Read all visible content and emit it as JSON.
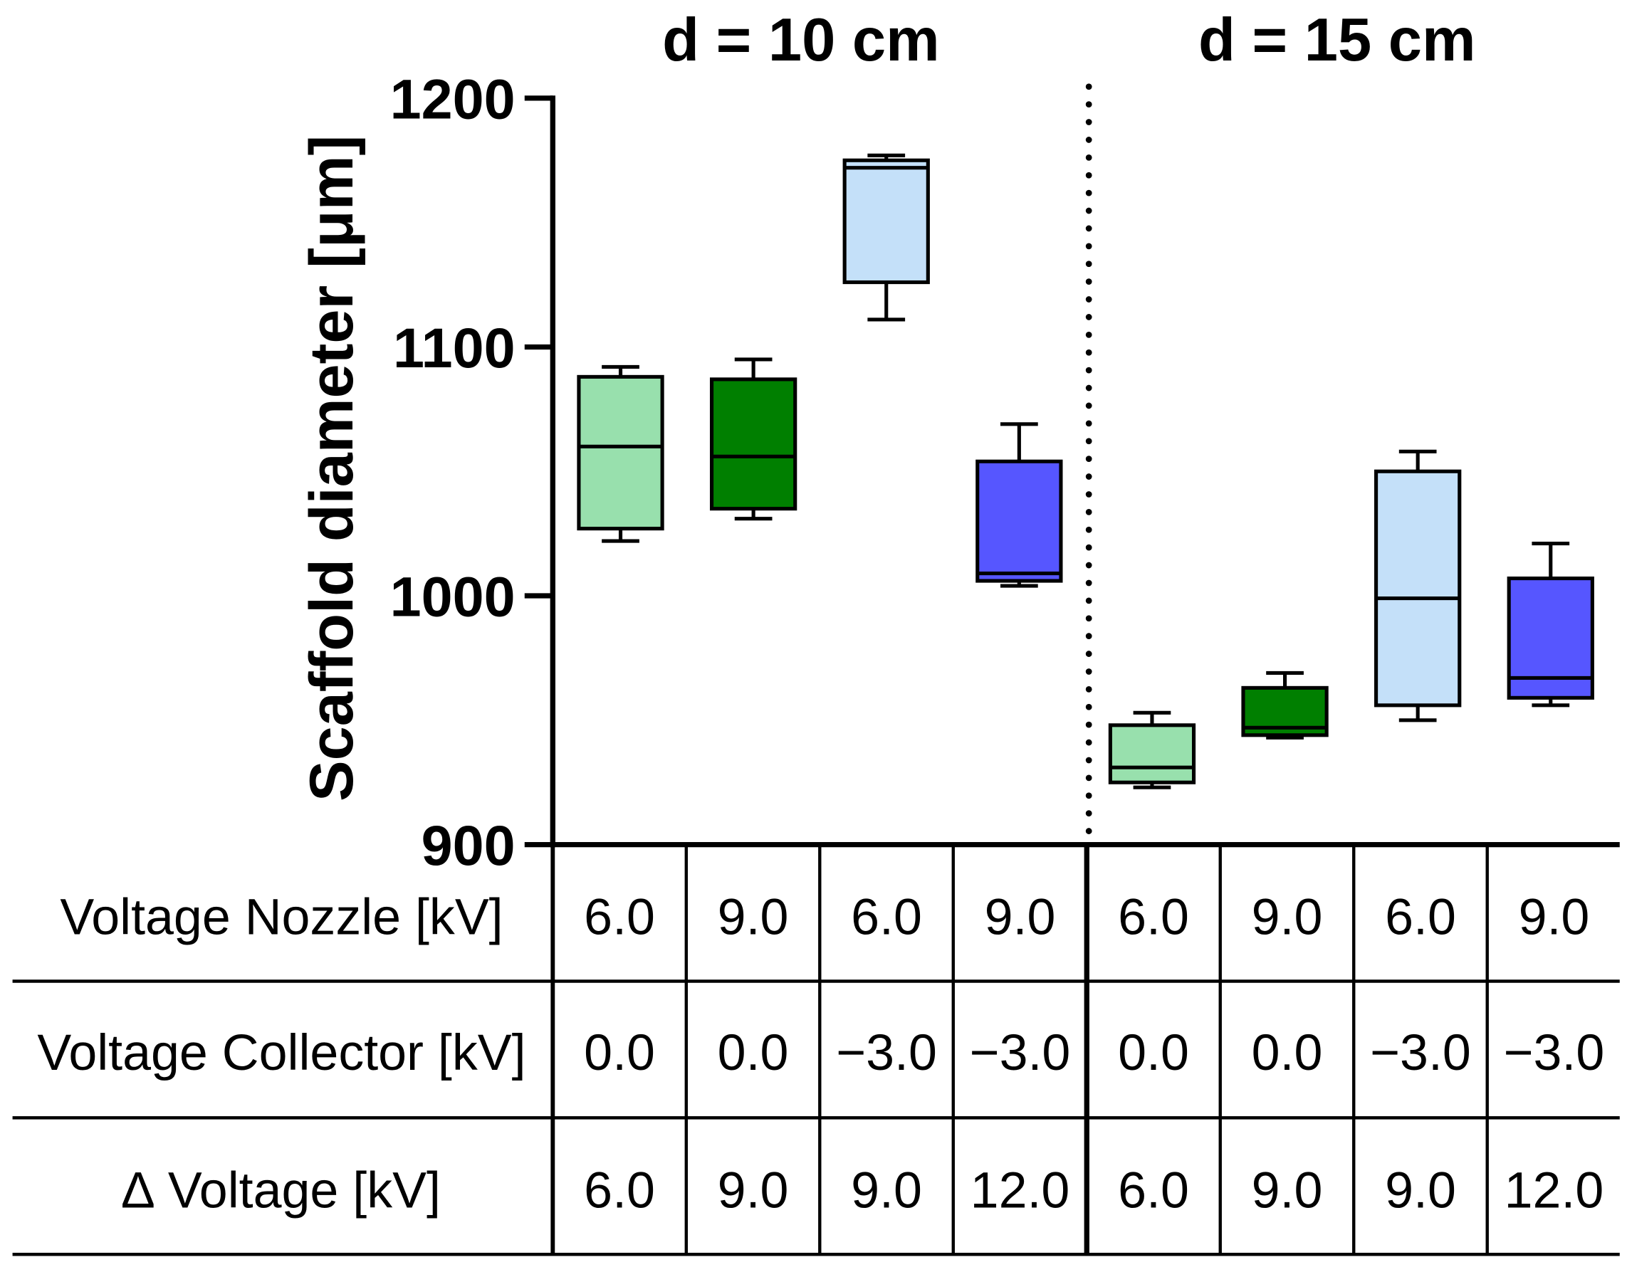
{
  "chart_data": {
    "type": "box",
    "panels": [
      "d = 10 cm",
      "d = 15 cm"
    ],
    "ylabel": "Scaffold diameter [μm]",
    "ylim": [
      900,
      1200
    ],
    "yticks": [
      900,
      1000,
      1100,
      1200
    ],
    "grid": false,
    "groups": [
      {
        "color": "#98E0AD",
        "whisker_low": 1022,
        "q1": 1027,
        "median": 1060,
        "q3": 1088,
        "whisker_high": 1092
      },
      {
        "color": "#007F00",
        "whisker_low": 1031,
        "q1": 1035,
        "median": 1056,
        "q3": 1087,
        "whisker_high": 1095
      },
      {
        "color": "#C4E0F9",
        "whisker_low": 1111,
        "q1": 1126,
        "median": 1172,
        "q3": 1175,
        "whisker_high": 1177
      },
      {
        "color": "#5656FF",
        "whisker_low": 1004,
        "q1": 1006,
        "median": 1009,
        "q3": 1054,
        "whisker_high": 1069
      },
      {
        "color": "#98E0AD",
        "whisker_low": 923,
        "q1": 925,
        "median": 931,
        "q3": 948,
        "whisker_high": 953
      },
      {
        "color": "#007F00",
        "whisker_low": 943,
        "q1": 944,
        "median": 947,
        "q3": 963,
        "whisker_high": 969
      },
      {
        "color": "#C4E0F9",
        "whisker_low": 950,
        "q1": 956,
        "median": 999,
        "q3": 1050,
        "whisker_high": 1058
      },
      {
        "color": "#5656FF",
        "whisker_low": 956,
        "q1": 959,
        "median": 967,
        "q3": 1007,
        "whisker_high": 1021
      }
    ]
  },
  "table": {
    "rows": [
      {
        "label": "Voltage Nozzle [kV]",
        "values": [
          "6.0",
          "9.0",
          "6.0",
          "9.0",
          "6.0",
          "9.0",
          "6.0",
          "9.0"
        ]
      },
      {
        "label": "Voltage Collector [kV]",
        "values": [
          "0.0",
          "0.0",
          "−3.0",
          "−3.0",
          "0.0",
          "0.0",
          "−3.0",
          "−3.0"
        ]
      },
      {
        "label": "∆ Voltage [kV]",
        "values": [
          "6.0",
          "9.0",
          "9.0",
          "12.0",
          "6.0",
          "9.0",
          "9.0",
          "12.0"
        ]
      }
    ]
  }
}
